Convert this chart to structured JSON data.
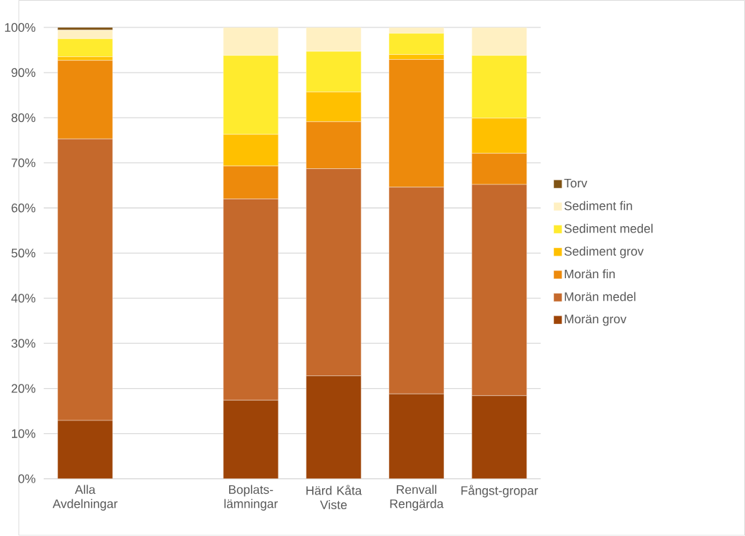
{
  "chart_data": {
    "type": "bar",
    "stacked": true,
    "categories": [
      "Alla Avdelningar",
      null,
      "Boplats-lämningar",
      "Härd Kåta Viste",
      "Renvall Rengärda",
      "Fångst-gropar"
    ],
    "series": [
      {
        "name": "Morän grov",
        "color": "#9e4407",
        "values": [
          12.9,
          0,
          17.4,
          22.8,
          18.8,
          18.4
        ]
      },
      {
        "name": "Morän medel",
        "color": "#c5692c",
        "values": [
          62.4,
          0,
          44.6,
          45.9,
          45.8,
          46.8
        ]
      },
      {
        "name": "Morän fin",
        "color": "#ed8a0c",
        "values": [
          17.4,
          0,
          7.3,
          10.4,
          28.3,
          6.9
        ]
      },
      {
        "name": "Sediment grov",
        "color": "#ffc000",
        "values": [
          0.8,
          0,
          7.0,
          6.6,
          1.1,
          7.8
        ]
      },
      {
        "name": "Sediment medel",
        "color": "#ffeb2e",
        "values": [
          4.0,
          0,
          17.5,
          9.0,
          4.7,
          13.9
        ]
      },
      {
        "name": "Sediment fin",
        "color": "#fff0c2",
        "values": [
          1.9,
          0,
          6.2,
          5.3,
          1.3,
          6.2
        ]
      },
      {
        "name": "Torv",
        "color": "#7f5314",
        "values": [
          0.6,
          0,
          0,
          0,
          0,
          0
        ]
      }
    ],
    "ylim": [
      0,
      100
    ],
    "yticks": [
      {
        "value": 0,
        "label": "0%"
      },
      {
        "value": 10,
        "label": "10%"
      },
      {
        "value": 20,
        "label": "20%"
      },
      {
        "value": 30,
        "label": "30%"
      },
      {
        "value": 40,
        "label": "40%"
      },
      {
        "value": 50,
        "label": "50%"
      },
      {
        "value": 60,
        "label": "60%"
      },
      {
        "value": 70,
        "label": "70%"
      },
      {
        "value": 80,
        "label": "80%"
      },
      {
        "value": 90,
        "label": "90%"
      },
      {
        "value": 100,
        "label": "100%"
      }
    ],
    "grid": "y",
    "legend": "right"
  }
}
